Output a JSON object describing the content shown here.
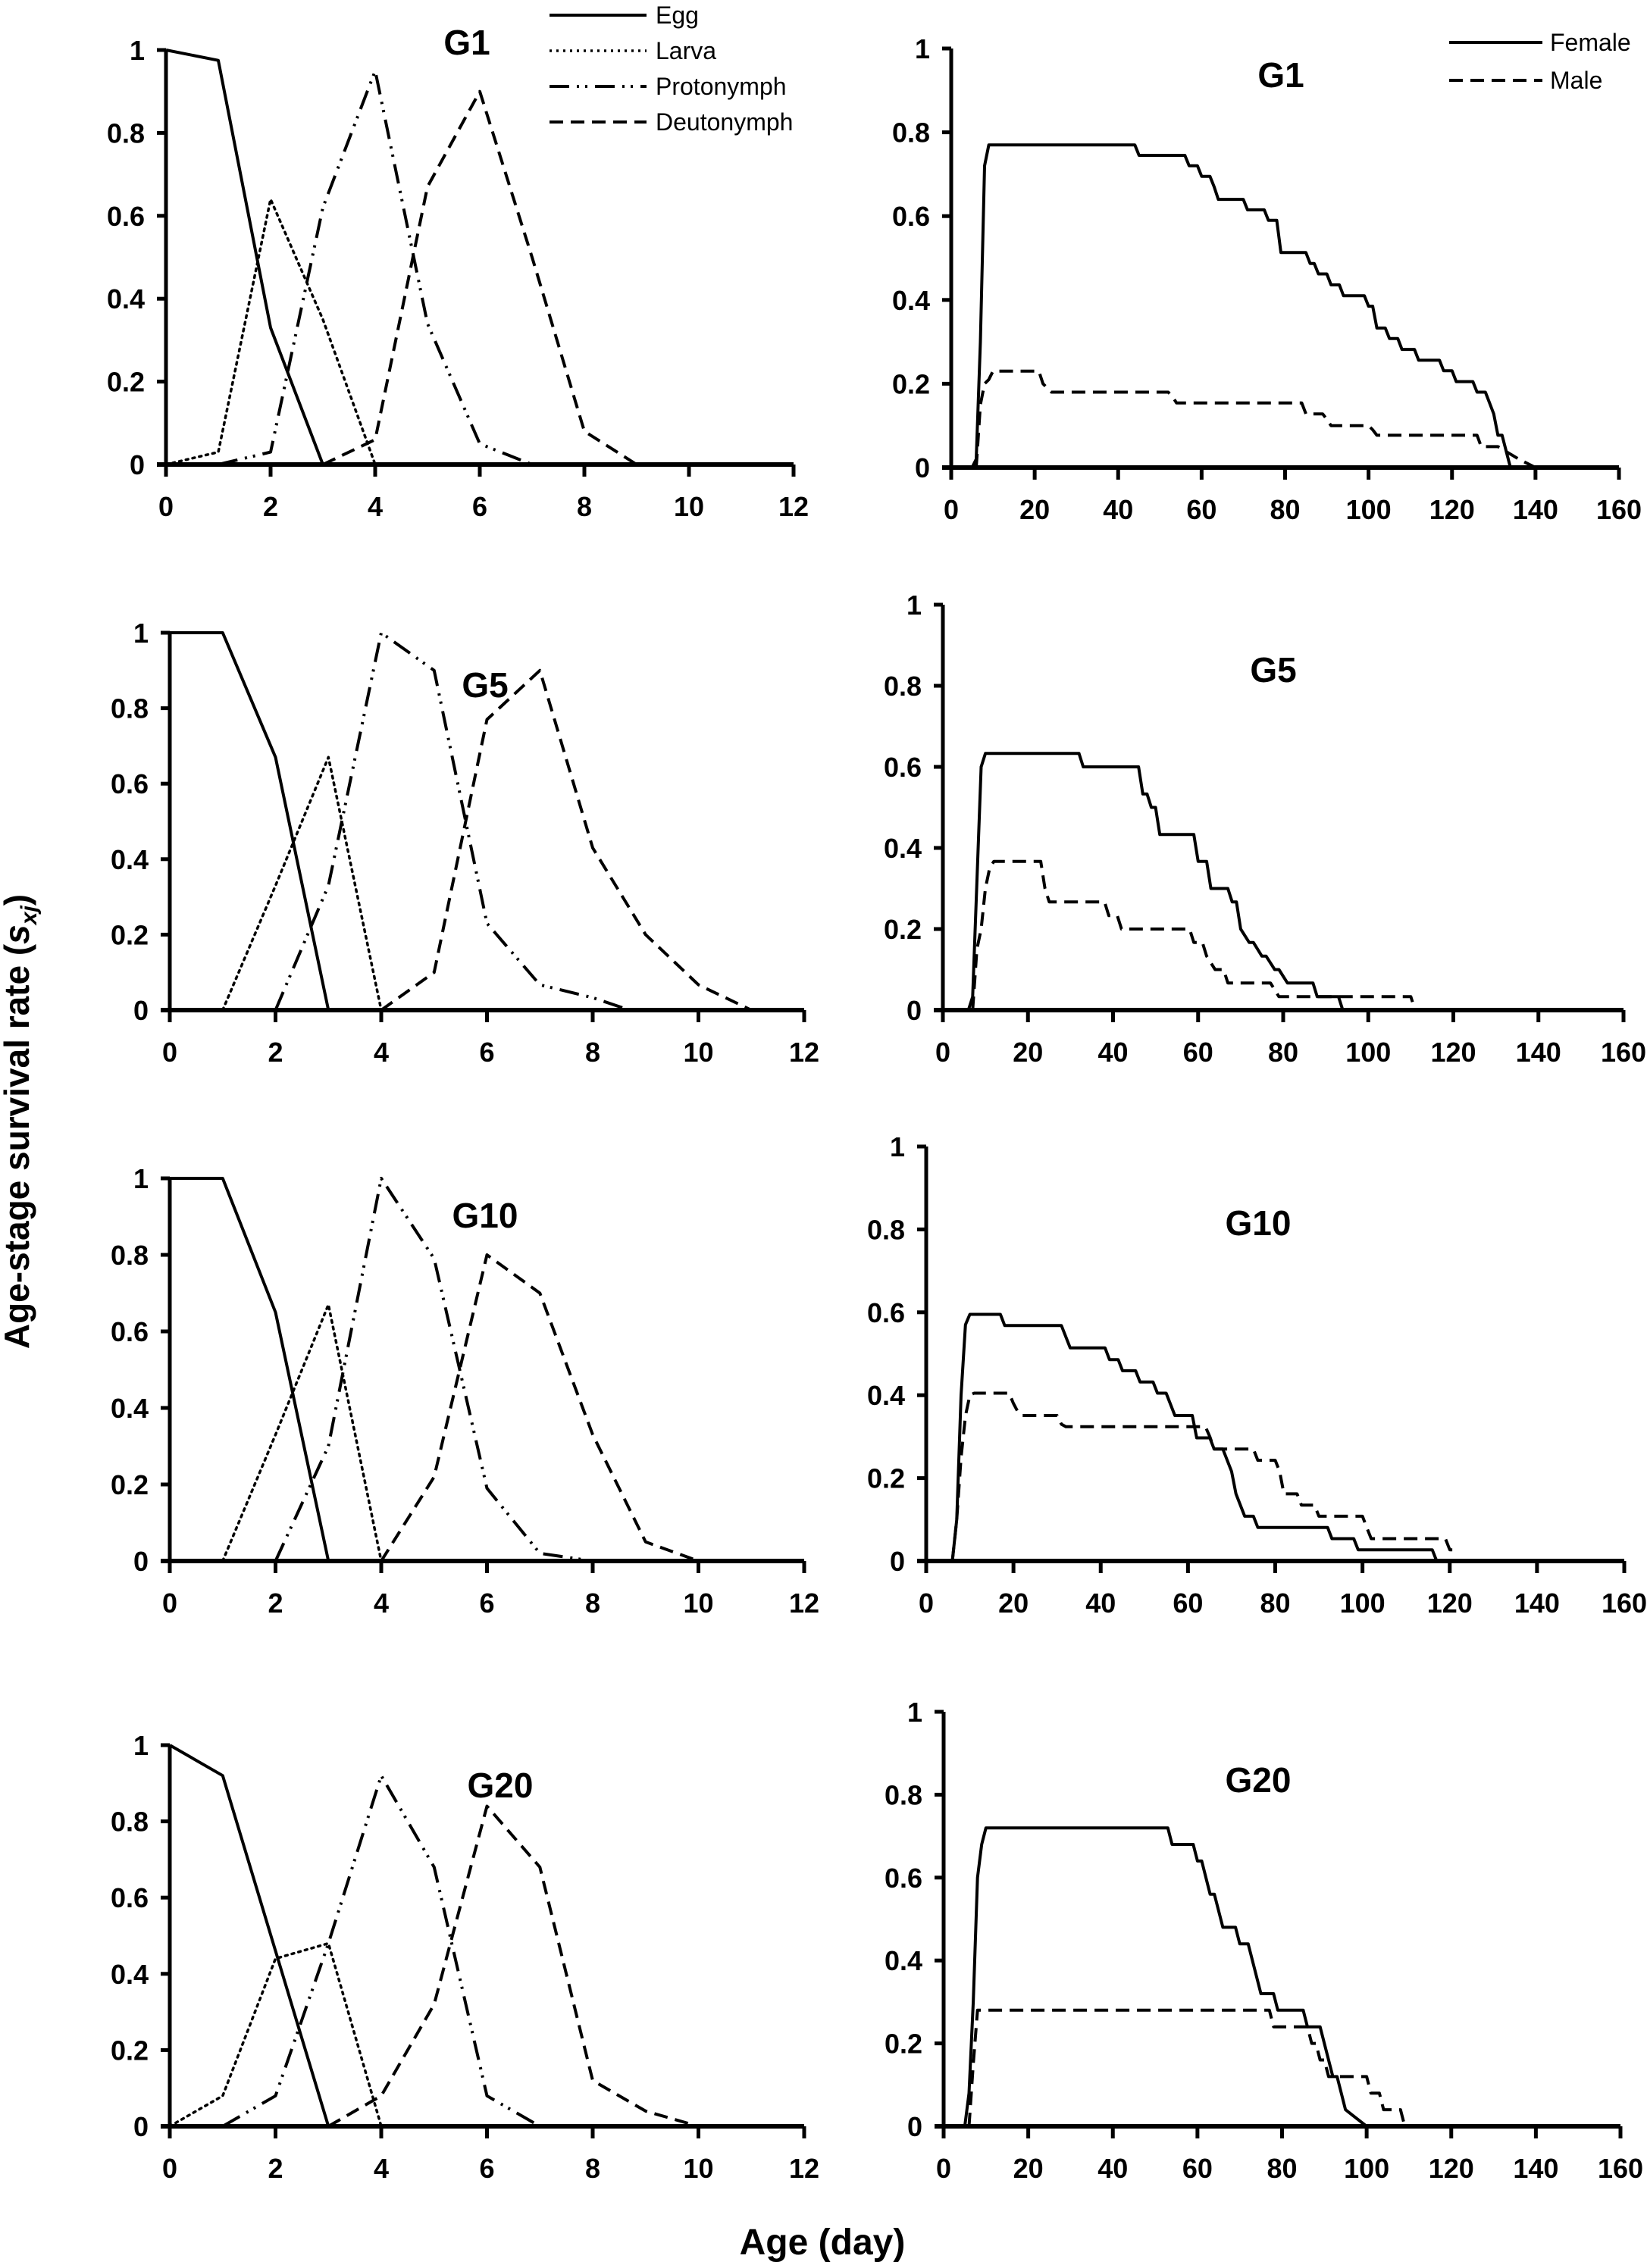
{
  "figure": {
    "ylabel": "Age-stage survival rate (",
    "ylabel_sym": "s",
    "ylabel_sub": "xj",
    "ylabel_close": ")",
    "xlabel": "Age (day)"
  },
  "chart_data": [
    {
      "type": "line",
      "title": "G1",
      "xlim": [
        0,
        12
      ],
      "ylim": [
        0,
        1
      ],
      "xticks": [
        "0",
        "2",
        "4",
        "6",
        "8",
        "10",
        "12"
      ],
      "yticks": [
        "0",
        "0.2",
        "0.4",
        "0.6",
        "0.8",
        "1"
      ],
      "legend": "top-right",
      "series": [
        {
          "name": "Egg",
          "style": "solid",
          "x": [
            0,
            1,
            2,
            3
          ],
          "y": [
            1,
            0.975,
            0.33,
            0
          ]
        },
        {
          "name": "Larva",
          "style": "dotted",
          "x": [
            0,
            1,
            2,
            3,
            4
          ],
          "y": [
            0,
            0.03,
            0.64,
            0.35,
            0
          ]
        },
        {
          "name": "Protonymph",
          "style": "dashdotdot",
          "x": [
            1,
            2,
            3,
            4,
            5,
            6,
            7
          ],
          "y": [
            0,
            0.03,
            0.62,
            0.95,
            0.34,
            0.05,
            0
          ]
        },
        {
          "name": "Deutonymph",
          "style": "dashed",
          "x": [
            3,
            4,
            5,
            6,
            7,
            8,
            9
          ],
          "y": [
            0,
            0.06,
            0.67,
            0.9,
            0.5,
            0.08,
            0
          ]
        }
      ]
    },
    {
      "type": "line",
      "title": "G1",
      "xlim": [
        0,
        160
      ],
      "ylim": [
        0,
        1
      ],
      "xticks": [
        "0",
        "20",
        "40",
        "60",
        "80",
        "100",
        "120",
        "140",
        "160"
      ],
      "yticks": [
        "0",
        "0.2",
        "0.4",
        "0.6",
        "0.8",
        "1"
      ],
      "legend": "top-right",
      "series": [
        {
          "name": "Female",
          "style": "solid",
          "x": [
            0,
            5,
            6,
            7,
            8,
            9,
            44,
            45,
            56,
            57,
            59,
            60,
            62,
            63,
            64,
            70,
            71,
            75,
            76,
            78,
            79,
            85,
            86,
            87,
            88,
            90,
            91,
            93,
            94,
            99,
            100,
            101,
            102,
            104,
            105,
            107,
            108,
            111,
            112,
            117,
            118,
            120,
            121,
            125,
            126,
            128,
            129,
            130,
            131,
            132,
            134
          ],
          "y": [
            0,
            0,
            0.02,
            0.3,
            0.72,
            0.77,
            0.77,
            0.745,
            0.745,
            0.72,
            0.72,
            0.695,
            0.695,
            0.67,
            0.64,
            0.64,
            0.615,
            0.615,
            0.59,
            0.59,
            0.513,
            0.513,
            0.487,
            0.487,
            0.462,
            0.462,
            0.436,
            0.436,
            0.41,
            0.41,
            0.385,
            0.385,
            0.333,
            0.333,
            0.308,
            0.308,
            0.282,
            0.282,
            0.256,
            0.256,
            0.231,
            0.231,
            0.205,
            0.205,
            0.18,
            0.18,
            0.154,
            0.128,
            0.077,
            0.077,
            0
          ]
        },
        {
          "name": "Male",
          "style": "dashed",
          "x": [
            6,
            7,
            8,
            9,
            10,
            21,
            22,
            24,
            52,
            53,
            54,
            84,
            85,
            89,
            90,
            91,
            100,
            101,
            102,
            126,
            127,
            130,
            131,
            136,
            140
          ],
          "y": [
            0,
            0.15,
            0.2,
            0.21,
            0.23,
            0.23,
            0.2,
            0.18,
            0.18,
            0.17,
            0.154,
            0.154,
            0.128,
            0.128,
            0.115,
            0.1,
            0.1,
            0.09,
            0.077,
            0.077,
            0.05,
            0.05,
            0.05,
            0.02,
            0
          ]
        }
      ]
    },
    {
      "type": "line",
      "title": "G5",
      "xlim": [
        0,
        12
      ],
      "ylim": [
        0,
        1
      ],
      "xticks": [
        "0",
        "2",
        "4",
        "6",
        "8",
        "10",
        "12"
      ],
      "yticks": [
        "0",
        "0.2",
        "0.4",
        "0.6",
        "0.8",
        "1"
      ],
      "series": [
        {
          "name": "Egg",
          "style": "solid",
          "x": [
            0,
            1,
            2,
            3
          ],
          "y": [
            1,
            1,
            0.67,
            0
          ]
        },
        {
          "name": "Larva",
          "style": "dotted",
          "x": [
            1,
            2,
            3,
            4
          ],
          "y": [
            0,
            0.33,
            0.67,
            0
          ]
        },
        {
          "name": "Protonymph",
          "style": "dashdotdot",
          "x": [
            2,
            3,
            4,
            5,
            6,
            7,
            8,
            8.7
          ],
          "y": [
            0,
            0.33,
            1,
            0.9,
            0.23,
            0.067,
            0.033,
            0
          ]
        },
        {
          "name": "Deutonymph",
          "style": "dashed",
          "x": [
            4,
            5,
            6,
            7,
            8,
            9,
            10,
            11
          ],
          "y": [
            0,
            0.1,
            0.77,
            0.9,
            0.43,
            0.2,
            0.067,
            0
          ]
        }
      ]
    },
    {
      "type": "line",
      "title": "G5",
      "xlim": [
        0,
        160
      ],
      "ylim": [
        0,
        1
      ],
      "xticks": [
        "0",
        "20",
        "40",
        "60",
        "80",
        "100",
        "120",
        "140",
        "160"
      ],
      "yticks": [
        "0",
        "0.2",
        "0.4",
        "0.6",
        "0.8",
        "1"
      ],
      "series": [
        {
          "name": "Female",
          "style": "solid",
          "x": [
            0,
            6,
            7,
            9,
            10,
            32,
            33,
            46,
            47,
            48,
            49,
            50,
            51,
            59,
            60,
            62,
            63,
            67,
            68,
            69,
            70,
            72,
            73,
            75,
            76,
            78,
            79,
            81,
            87,
            88,
            93,
            94
          ],
          "y": [
            0,
            0,
            0.033,
            0.6,
            0.633,
            0.633,
            0.6,
            0.6,
            0.533,
            0.533,
            0.5,
            0.5,
            0.433,
            0.433,
            0.367,
            0.367,
            0.3,
            0.3,
            0.267,
            0.267,
            0.2,
            0.167,
            0.167,
            0.133,
            0.133,
            0.1,
            0.1,
            0.067,
            0.067,
            0.033,
            0.033,
            0
          ]
        },
        {
          "name": "Male",
          "style": "dashed",
          "x": [
            7,
            8,
            9,
            10,
            11,
            12,
            23,
            24,
            25,
            38,
            39,
            41,
            42,
            58,
            59,
            61,
            62,
            64,
            66,
            67,
            77,
            78,
            79,
            110,
            111
          ],
          "y": [
            0,
            0.15,
            0.2,
            0.3,
            0.35,
            0.367,
            0.367,
            0.3,
            0.267,
            0.267,
            0.233,
            0.233,
            0.2,
            0.2,
            0.167,
            0.167,
            0.133,
            0.1,
            0.1,
            0.067,
            0.067,
            0.05,
            0.033,
            0.033,
            0
          ]
        }
      ]
    },
    {
      "type": "line",
      "title": "G10",
      "xlim": [
        0,
        12
      ],
      "ylim": [
        0,
        1
      ],
      "xticks": [
        "0",
        "2",
        "4",
        "6",
        "8",
        "10",
        "12"
      ],
      "yticks": [
        "0",
        "0.2",
        "0.4",
        "0.6",
        "0.8",
        "1"
      ],
      "series": [
        {
          "name": "Egg",
          "style": "solid",
          "x": [
            0,
            1,
            2,
            3
          ],
          "y": [
            1,
            1,
            0.65,
            0
          ]
        },
        {
          "name": "Larva",
          "style": "dotted",
          "x": [
            1,
            2,
            3,
            4
          ],
          "y": [
            0,
            0.33,
            0.67,
            0
          ]
        },
        {
          "name": "Protonymph",
          "style": "dashdotdot",
          "x": [
            2,
            3,
            4,
            5,
            6,
            7,
            8
          ],
          "y": [
            0,
            0.3,
            1,
            0.79,
            0.19,
            0.02,
            0
          ]
        },
        {
          "name": "Deutonymph",
          "style": "dashed",
          "x": [
            4,
            5,
            6,
            7,
            8,
            9,
            10
          ],
          "y": [
            0,
            0.22,
            0.8,
            0.7,
            0.33,
            0.05,
            0
          ]
        }
      ]
    },
    {
      "type": "line",
      "title": "G10",
      "xlim": [
        0,
        160
      ],
      "ylim": [
        0,
        1
      ],
      "xticks": [
        "0",
        "20",
        "40",
        "60",
        "80",
        "100",
        "120",
        "140",
        "160"
      ],
      "yticks": [
        "0",
        "0.2",
        "0.4",
        "0.6",
        "0.8",
        "1"
      ],
      "series": [
        {
          "name": "Female",
          "style": "solid",
          "x": [
            0,
            6,
            7,
            8,
            9,
            10,
            17,
            18,
            31,
            33,
            41,
            42,
            44,
            45,
            48,
            49,
            52,
            53,
            55,
            57,
            61,
            62,
            65,
            66,
            68,
            70,
            71,
            73,
            75,
            76,
            92,
            93,
            98,
            99,
            116,
            117
          ],
          "y": [
            0,
            0,
            0.1,
            0.4,
            0.57,
            0.595,
            0.595,
            0.568,
            0.568,
            0.514,
            0.514,
            0.486,
            0.486,
            0.459,
            0.459,
            0.432,
            0.432,
            0.405,
            0.405,
            0.351,
            0.351,
            0.297,
            0.297,
            0.27,
            0.27,
            0.216,
            0.162,
            0.108,
            0.108,
            0.081,
            0.081,
            0.054,
            0.054,
            0.027,
            0.027,
            0
          ]
        },
        {
          "name": "Male",
          "style": "dashed",
          "x": [
            6,
            7,
            8,
            9,
            10,
            11,
            19,
            20,
            21,
            22,
            30,
            31,
            32,
            64,
            65,
            66,
            75,
            76,
            80,
            81,
            82,
            85,
            86,
            89,
            90,
            100,
            101,
            102,
            119,
            120,
            122
          ],
          "y": [
            0,
            0.1,
            0.25,
            0.35,
            0.4,
            0.405,
            0.405,
            0.38,
            0.36,
            0.351,
            0.351,
            0.33,
            0.324,
            0.324,
            0.3,
            0.27,
            0.27,
            0.243,
            0.243,
            0.216,
            0.162,
            0.162,
            0.135,
            0.135,
            0.108,
            0.108,
            0.08,
            0.054,
            0.054,
            0.027,
            0.027
          ]
        }
      ]
    },
    {
      "type": "line",
      "title": "G20",
      "xlim": [
        0,
        12
      ],
      "ylim": [
        0,
        1
      ],
      "xticks": [
        "0",
        "2",
        "4",
        "6",
        "8",
        "10",
        "12"
      ],
      "yticks": [
        "0",
        "0.2",
        "0.4",
        "0.6",
        "0.8",
        "1"
      ],
      "series": [
        {
          "name": "Egg",
          "style": "solid",
          "x": [
            0,
            1,
            2,
            3
          ],
          "y": [
            1,
            0.92,
            0.46,
            0
          ]
        },
        {
          "name": "Larva",
          "style": "dotted",
          "x": [
            0,
            1,
            2,
            3,
            4
          ],
          "y": [
            0,
            0.08,
            0.44,
            0.48,
            0
          ]
        },
        {
          "name": "Protonymph",
          "style": "dashdotdot",
          "x": [
            1,
            2,
            3,
            4,
            5,
            6,
            7
          ],
          "y": [
            0,
            0.08,
            0.48,
            0.92,
            0.68,
            0.08,
            0
          ]
        },
        {
          "name": "Deutonymph",
          "style": "dashed",
          "x": [
            3,
            4,
            5,
            6,
            7,
            8,
            9,
            10
          ],
          "y": [
            0,
            0.08,
            0.32,
            0.84,
            0.68,
            0.12,
            0.04,
            0
          ]
        }
      ]
    },
    {
      "type": "line",
      "title": "G20",
      "xlim": [
        0,
        160
      ],
      "ylim": [
        0,
        1
      ],
      "xticks": [
        "0",
        "20",
        "40",
        "60",
        "80",
        "100",
        "120",
        "140",
        "160"
      ],
      "yticks": [
        "0",
        "0.2",
        "0.4",
        "0.6",
        "0.8",
        "1"
      ],
      "series": [
        {
          "name": "Female",
          "style": "solid",
          "x": [
            0,
            5,
            6,
            7,
            8,
            9,
            10,
            53,
            54,
            59,
            60,
            61,
            63,
            64,
            66,
            69,
            70,
            72,
            75,
            78,
            79,
            85,
            86,
            89,
            92,
            93,
            95,
            100
          ],
          "y": [
            0,
            0,
            0.08,
            0.3,
            0.6,
            0.68,
            0.72,
            0.72,
            0.68,
            0.68,
            0.64,
            0.64,
            0.56,
            0.56,
            0.48,
            0.48,
            0.44,
            0.44,
            0.32,
            0.32,
            0.28,
            0.28,
            0.24,
            0.24,
            0.12,
            0.12,
            0.04,
            0
          ]
        },
        {
          "name": "Male",
          "style": "dashed",
          "x": [
            6,
            7,
            8,
            77,
            78,
            86,
            87,
            88,
            89,
            90,
            91,
            100,
            101,
            103,
            104,
            108,
            109
          ],
          "y": [
            0,
            0.15,
            0.28,
            0.28,
            0.24,
            0.24,
            0.2,
            0.2,
            0.16,
            0.16,
            0.12,
            0.12,
            0.08,
            0.08,
            0.04,
            0.04,
            0
          ]
        }
      ]
    }
  ]
}
